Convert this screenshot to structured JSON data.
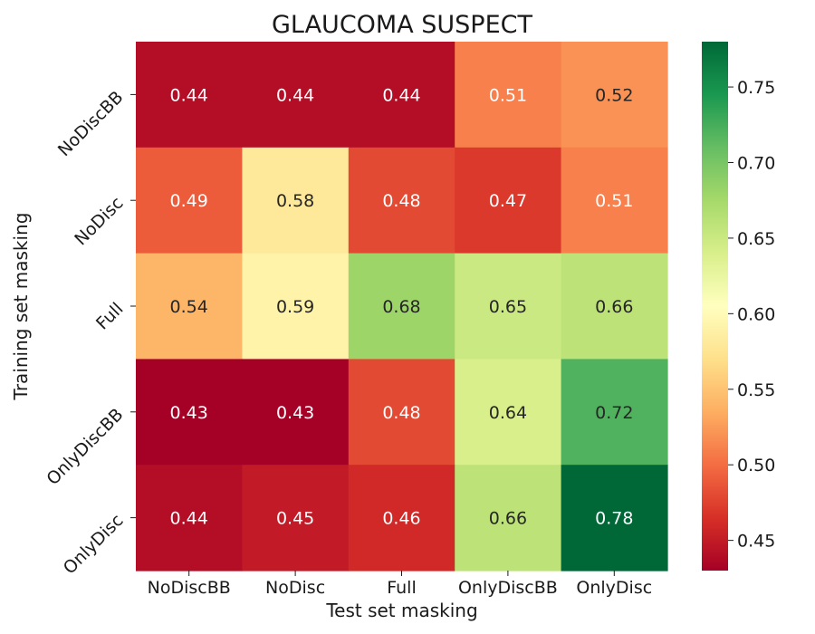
{
  "chart_data": {
    "type": "heatmap",
    "title": "GLAUCOMA SUSPECT",
    "xlabel": "Test set masking",
    "ylabel": "Training set masking",
    "x_categories": [
      "NoDiscBB",
      "NoDisc",
      "Full",
      "OnlyDiscBB",
      "OnlyDisc"
    ],
    "y_categories": [
      "NoDiscBB",
      "NoDisc",
      "Full",
      "OnlyDiscBB",
      "OnlyDisc"
    ],
    "values": [
      [
        0.44,
        0.44,
        0.44,
        0.51,
        0.52
      ],
      [
        0.49,
        0.58,
        0.48,
        0.47,
        0.51
      ],
      [
        0.54,
        0.59,
        0.68,
        0.65,
        0.66
      ],
      [
        0.43,
        0.43,
        0.48,
        0.64,
        0.72
      ],
      [
        0.44,
        0.45,
        0.46,
        0.66,
        0.78
      ]
    ],
    "colormap": "RdYlGn",
    "color_range": [
      0.43,
      0.78
    ],
    "colorbar_ticks": [
      "0.45",
      "0.50",
      "0.55",
      "0.60",
      "0.65",
      "0.70",
      "0.75"
    ]
  }
}
